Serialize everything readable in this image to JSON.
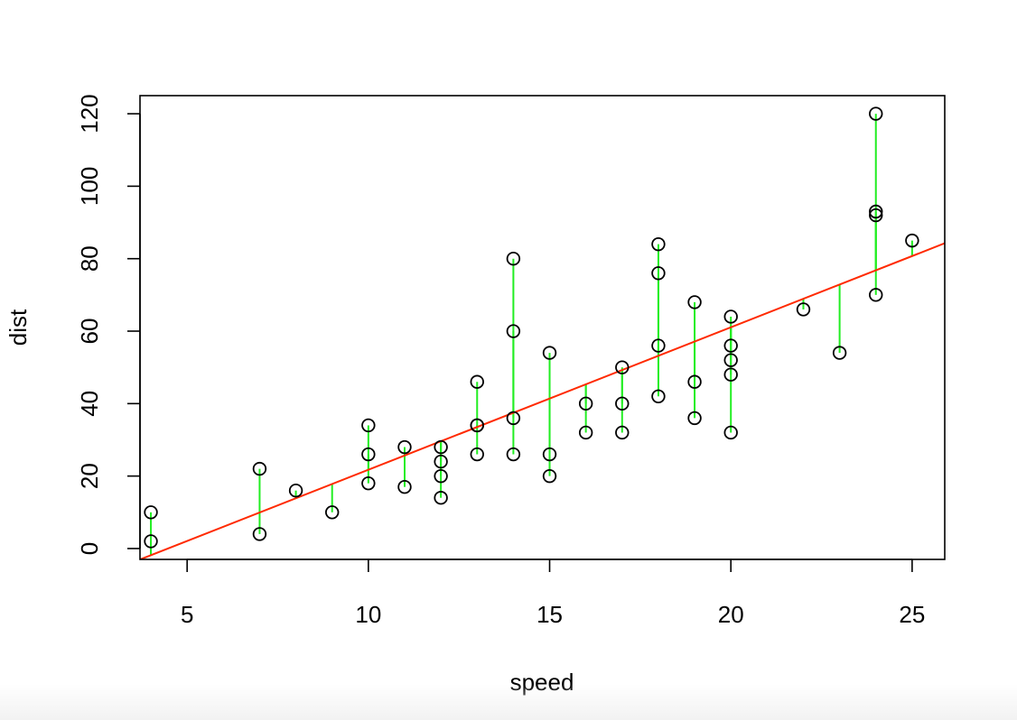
{
  "chart_data": {
    "type": "scatter",
    "title": "",
    "xlabel": "speed",
    "ylabel": "dist",
    "xlim": [
      3.7,
      25.9
    ],
    "ylim": [
      -3,
      125
    ],
    "x_ticks": [
      5,
      10,
      15,
      20,
      25
    ],
    "y_ticks": [
      0,
      20,
      40,
      60,
      80,
      100,
      120
    ],
    "grid": false,
    "legend": "none",
    "colors": {
      "points": "#000000",
      "fit_line": "#ff2a00",
      "residuals": "#22ee22"
    },
    "fit_line": {
      "intercept": -17.579,
      "slope": 3.932
    },
    "points": {
      "x": [
        4,
        4,
        7,
        7,
        8,
        9,
        10,
        10,
        10,
        11,
        11,
        12,
        12,
        12,
        12,
        13,
        13,
        13,
        13,
        14,
        14,
        14,
        14,
        15,
        15,
        15,
        16,
        16,
        17,
        17,
        17,
        18,
        18,
        18,
        18,
        19,
        19,
        19,
        20,
        20,
        20,
        20,
        20,
        22,
        23,
        24,
        24,
        24,
        24,
        25
      ],
      "y": [
        2,
        10,
        4,
        22,
        16,
        10,
        18,
        26,
        34,
        17,
        28,
        14,
        20,
        24,
        28,
        26,
        34,
        34,
        46,
        26,
        36,
        60,
        80,
        20,
        26,
        54,
        32,
        40,
        32,
        40,
        50,
        42,
        56,
        76,
        84,
        36,
        46,
        68,
        32,
        48,
        52,
        56,
        64,
        66,
        54,
        70,
        92,
        93,
        120,
        85
      ]
    }
  }
}
